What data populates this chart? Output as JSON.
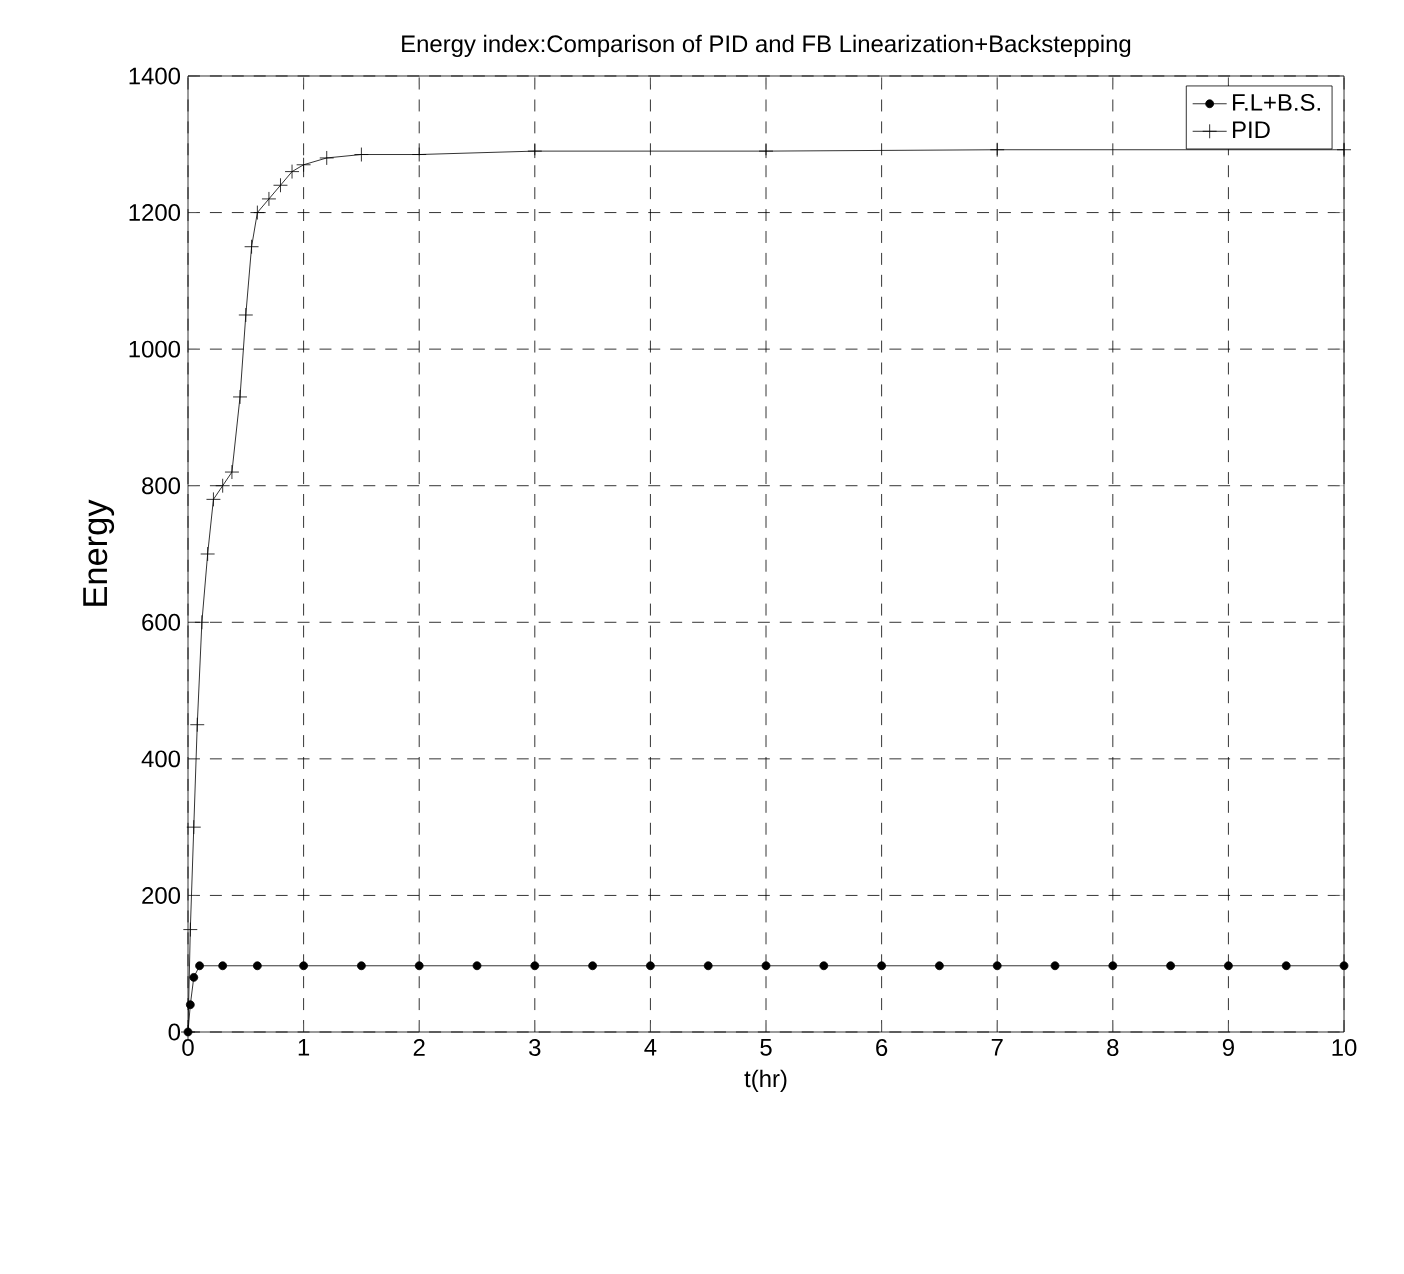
{
  "chart_data": {
    "type": "line",
    "title": "Energy index:Comparison of PID and FB Linearization+Backstepping",
    "xlabel": "t(hr)",
    "ylabel": "Energy",
    "xlim": [
      0,
      10
    ],
    "ylim": [
      0,
      1400
    ],
    "xticks": [
      0,
      1,
      2,
      3,
      4,
      5,
      6,
      7,
      8,
      9,
      10
    ],
    "yticks": [
      0,
      200,
      400,
      600,
      800,
      1000,
      1200,
      1400
    ],
    "grid": true,
    "legend": "top right",
    "series": [
      {
        "name": "F.L+B.S.",
        "color": "#000000",
        "marker": "circle",
        "x": [
          0,
          0.02,
          0.05,
          0.1,
          0.3,
          0.6,
          1,
          1.5,
          2,
          2.5,
          3,
          3.5,
          4,
          4.5,
          5,
          5.5,
          6,
          6.5,
          7,
          7.5,
          8,
          8.5,
          9,
          9.5,
          10
        ],
        "values": [
          0,
          40,
          80,
          97,
          97,
          97,
          97,
          97,
          97,
          97,
          97,
          97,
          97,
          97,
          97,
          97,
          97,
          97,
          97,
          97,
          97,
          97,
          97,
          97,
          97
        ]
      },
      {
        "name": "PID",
        "color": "#000000",
        "marker": "cross",
        "x": [
          0,
          0.02,
          0.05,
          0.08,
          0.12,
          0.17,
          0.22,
          0.3,
          0.38,
          0.45,
          0.5,
          0.55,
          0.6,
          0.7,
          0.8,
          0.9,
          1.0,
          1.2,
          1.5,
          2,
          3,
          5,
          7,
          10
        ],
        "values": [
          0,
          150,
          300,
          450,
          600,
          700,
          780,
          800,
          820,
          930,
          1050,
          1150,
          1200,
          1220,
          1240,
          1260,
          1270,
          1280,
          1285,
          1285,
          1290,
          1290,
          1292,
          1292
        ]
      }
    ]
  }
}
